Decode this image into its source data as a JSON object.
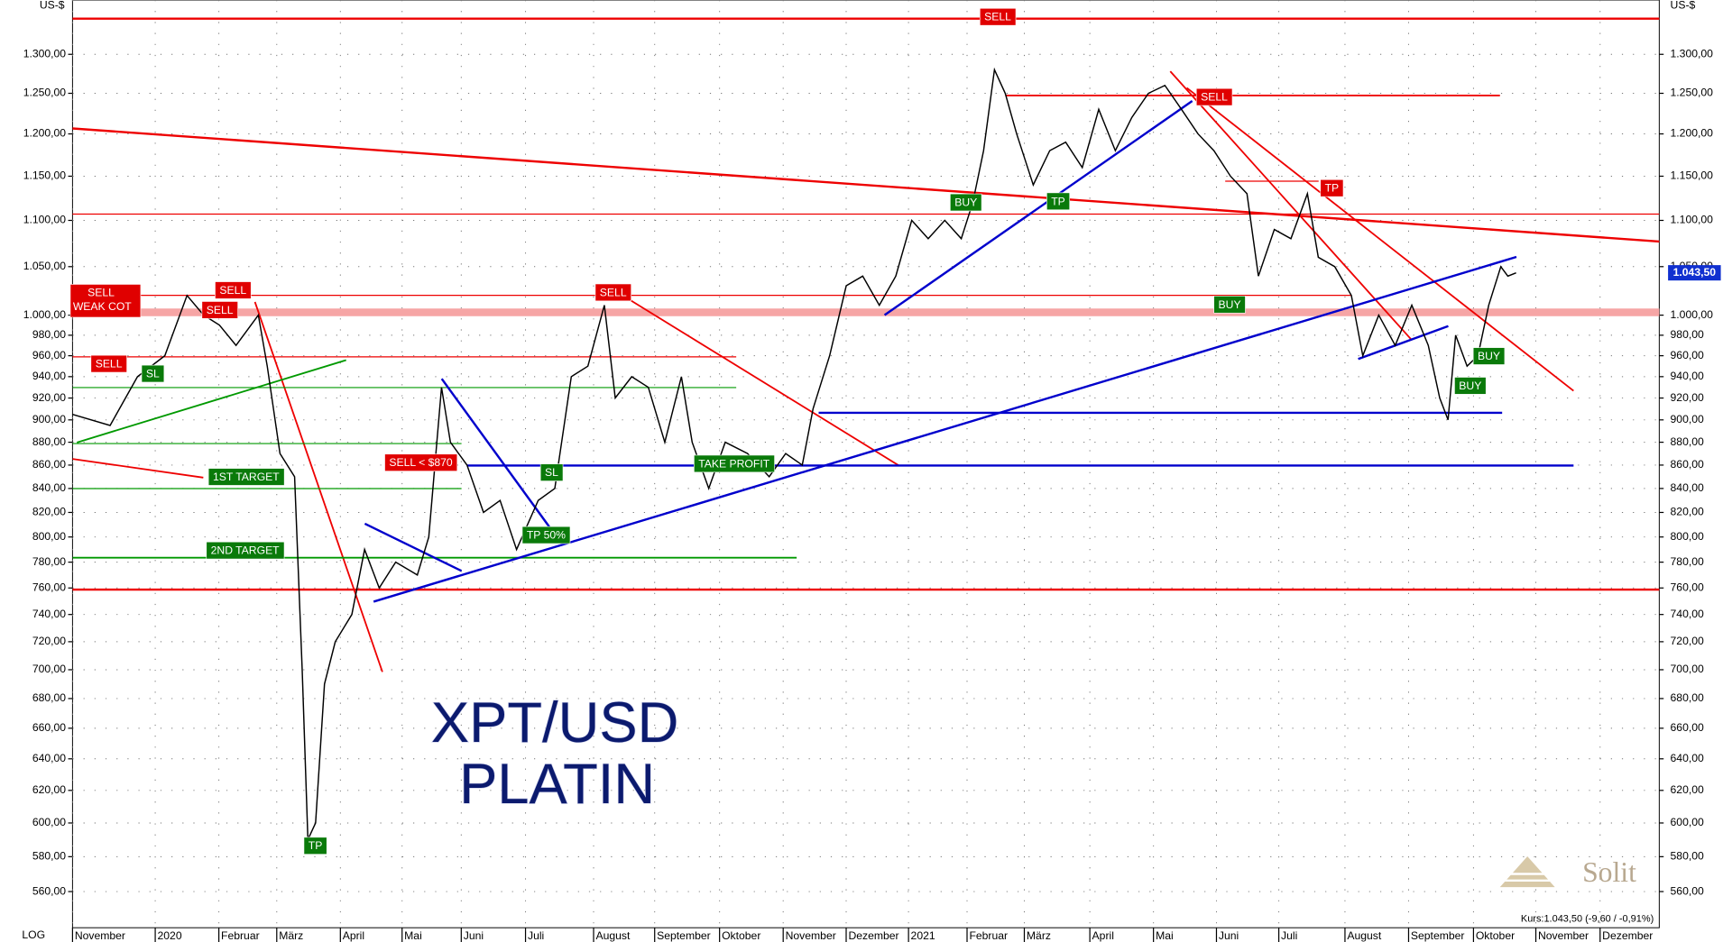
{
  "chart_data": {
    "type": "line",
    "title": "XPT/USD",
    "subtitle": "PLATIN",
    "y_unit": "US-$",
    "scale_label": "LOG",
    "log_scale": true,
    "grid": true,
    "color": "#000000",
    "x": [
      0,
      0.59,
      1.02,
      1.45,
      1.8,
      2.06,
      2.31,
      2.57,
      2.92,
      3.06,
      3.26,
      3.49,
      3.61,
      3.7,
      3.82,
      3.96,
      4.13,
      4.39,
      4.59,
      4.82,
      5.08,
      5.42,
      5.6,
      5.8,
      5.94,
      6.2,
      6.46,
      6.72,
      6.98,
      7.32,
      7.58,
      7.84,
      8.1,
      8.36,
      8.53,
      8.79,
      9.05,
      9.31,
      9.57,
      9.74,
      10.0,
      10.26,
      10.61,
      10.95,
      11.21,
      11.47,
      11.64,
      11.9,
      12.16,
      12.42,
      12.68,
      12.94,
      13.19,
      13.45,
      13.71,
      13.97,
      14.15,
      14.32,
      14.49,
      14.66,
      14.84,
      15.1,
      15.36,
      15.61,
      15.87,
      16.13,
      16.39,
      16.65,
      16.91,
      17.17,
      17.43,
      17.69,
      17.94,
      18.2,
      18.46,
      18.64,
      18.89,
      19.15,
      19.41,
      19.58,
      19.84,
      20.1,
      20.28,
      20.53,
      20.79,
      21.05,
      21.31,
      21.49,
      21.62,
      21.74,
      21.92,
      22.09,
      22.26,
      22.45,
      22.56,
      22.69
    ],
    "values": [
      905,
      895,
      940,
      960,
      1020,
      1000,
      990,
      970,
      1000,
      950,
      870,
      850,
      700,
      590,
      600,
      690,
      720,
      740,
      790,
      760,
      780,
      770,
      800,
      930,
      880,
      860,
      820,
      830,
      790,
      830,
      840,
      940,
      950,
      1010,
      920,
      940,
      930,
      880,
      940,
      880,
      840,
      880,
      870,
      850,
      870,
      860,
      910,
      960,
      1030,
      1040,
      1010,
      1040,
      1100,
      1080,
      1100,
      1080,
      1120,
      1180,
      1280,
      1250,
      1200,
      1140,
      1180,
      1190,
      1160,
      1230,
      1180,
      1220,
      1250,
      1260,
      1230,
      1200,
      1180,
      1150,
      1130,
      1040,
      1090,
      1080,
      1130,
      1060,
      1050,
      1020,
      960,
      1000,
      970,
      1010,
      970,
      920,
      900,
      980,
      950,
      960,
      1010,
      1050,
      1040,
      1043.5
    ],
    "xlim": [
      0,
      24.94
    ],
    "ylim": [
      540,
      1373
    ],
    "xticks": [
      {
        "value": 0,
        "label": "November"
      },
      {
        "value": 1.3,
        "label": "2020"
      },
      {
        "value": 2.3,
        "label": "Februar"
      },
      {
        "value": 3.21,
        "label": "März"
      },
      {
        "value": 4.21,
        "label": "April"
      },
      {
        "value": 5.18,
        "label": "Mai"
      },
      {
        "value": 6.11,
        "label": "Juni"
      },
      {
        "value": 7.12,
        "label": "Juli"
      },
      {
        "value": 8.19,
        "label": "August"
      },
      {
        "value": 9.15,
        "label": "September"
      },
      {
        "value": 10.17,
        "label": "Oktober"
      },
      {
        "value": 11.17,
        "label": "November"
      },
      {
        "value": 12.16,
        "label": "Dezember"
      },
      {
        "value": 13.14,
        "label": "2021"
      },
      {
        "value": 14.06,
        "label": "Februar"
      },
      {
        "value": 14.96,
        "label": "März"
      },
      {
        "value": 15.99,
        "label": "April"
      },
      {
        "value": 16.99,
        "label": "Mai"
      },
      {
        "value": 17.98,
        "label": "Juni"
      },
      {
        "value": 18.96,
        "label": "Juli"
      },
      {
        "value": 20.0,
        "label": "August"
      },
      {
        "value": 21.0,
        "label": "September"
      },
      {
        "value": 22.02,
        "label": "Oktober"
      },
      {
        "value": 23.0,
        "label": "November"
      },
      {
        "value": 24.01,
        "label": "Dezember"
      }
    ],
    "yticks": [
      {
        "value": 560,
        "label": "560,00"
      },
      {
        "value": 580,
        "label": "580,00"
      },
      {
        "value": 600,
        "label": "600,00"
      },
      {
        "value": 620,
        "label": "620,00"
      },
      {
        "value": 640,
        "label": "640,00"
      },
      {
        "value": 660,
        "label": "660,00"
      },
      {
        "value": 680,
        "label": "680,00"
      },
      {
        "value": 700,
        "label": "700,00"
      },
      {
        "value": 720,
        "label": "720,00"
      },
      {
        "value": 740,
        "label": "740,00"
      },
      {
        "value": 760,
        "label": "760,00"
      },
      {
        "value": 780,
        "label": "780,00"
      },
      {
        "value": 800,
        "label": "800,00"
      },
      {
        "value": 820,
        "label": "820,00"
      },
      {
        "value": 840,
        "label": "840,00"
      },
      {
        "value": 860,
        "label": "860,00"
      },
      {
        "value": 880,
        "label": "880,00"
      },
      {
        "value": 900,
        "label": "900,00"
      },
      {
        "value": 920,
        "label": "920,00"
      },
      {
        "value": 940,
        "label": "940,00"
      },
      {
        "value": 960,
        "label": "960,00"
      },
      {
        "value": 980,
        "label": "980,00"
      },
      {
        "value": 1000,
        "label": "1.000,00"
      },
      {
        "value": 1050,
        "label": "1.050,00"
      },
      {
        "value": 1100,
        "label": "1.100,00"
      },
      {
        "value": 1150,
        "label": "1.150,00"
      },
      {
        "value": 1200,
        "label": "1.200,00"
      },
      {
        "value": 1250,
        "label": "1.250,00"
      },
      {
        "value": 1300,
        "label": "1.300,00"
      }
    ],
    "price_tag": {
      "value": 1043.5,
      "label": "1.043,50"
    },
    "quote": "Kurs:1.043,50 (-9,60 / -0,91%)",
    "annotations": [
      "SELL",
      "SELL",
      "WEAK COT",
      "SELL",
      "SELL",
      "SELL",
      "SL",
      "1ST TARGET",
      "2ND TARGET",
      "TP",
      "SELL < $870",
      "SL",
      "TP 50%",
      "SELL",
      "TAKE PROFIT",
      "BUY",
      "TP",
      "SELL",
      "TP",
      "BUY",
      "BUY",
      "BUY"
    ],
    "brand": "Solit"
  }
}
